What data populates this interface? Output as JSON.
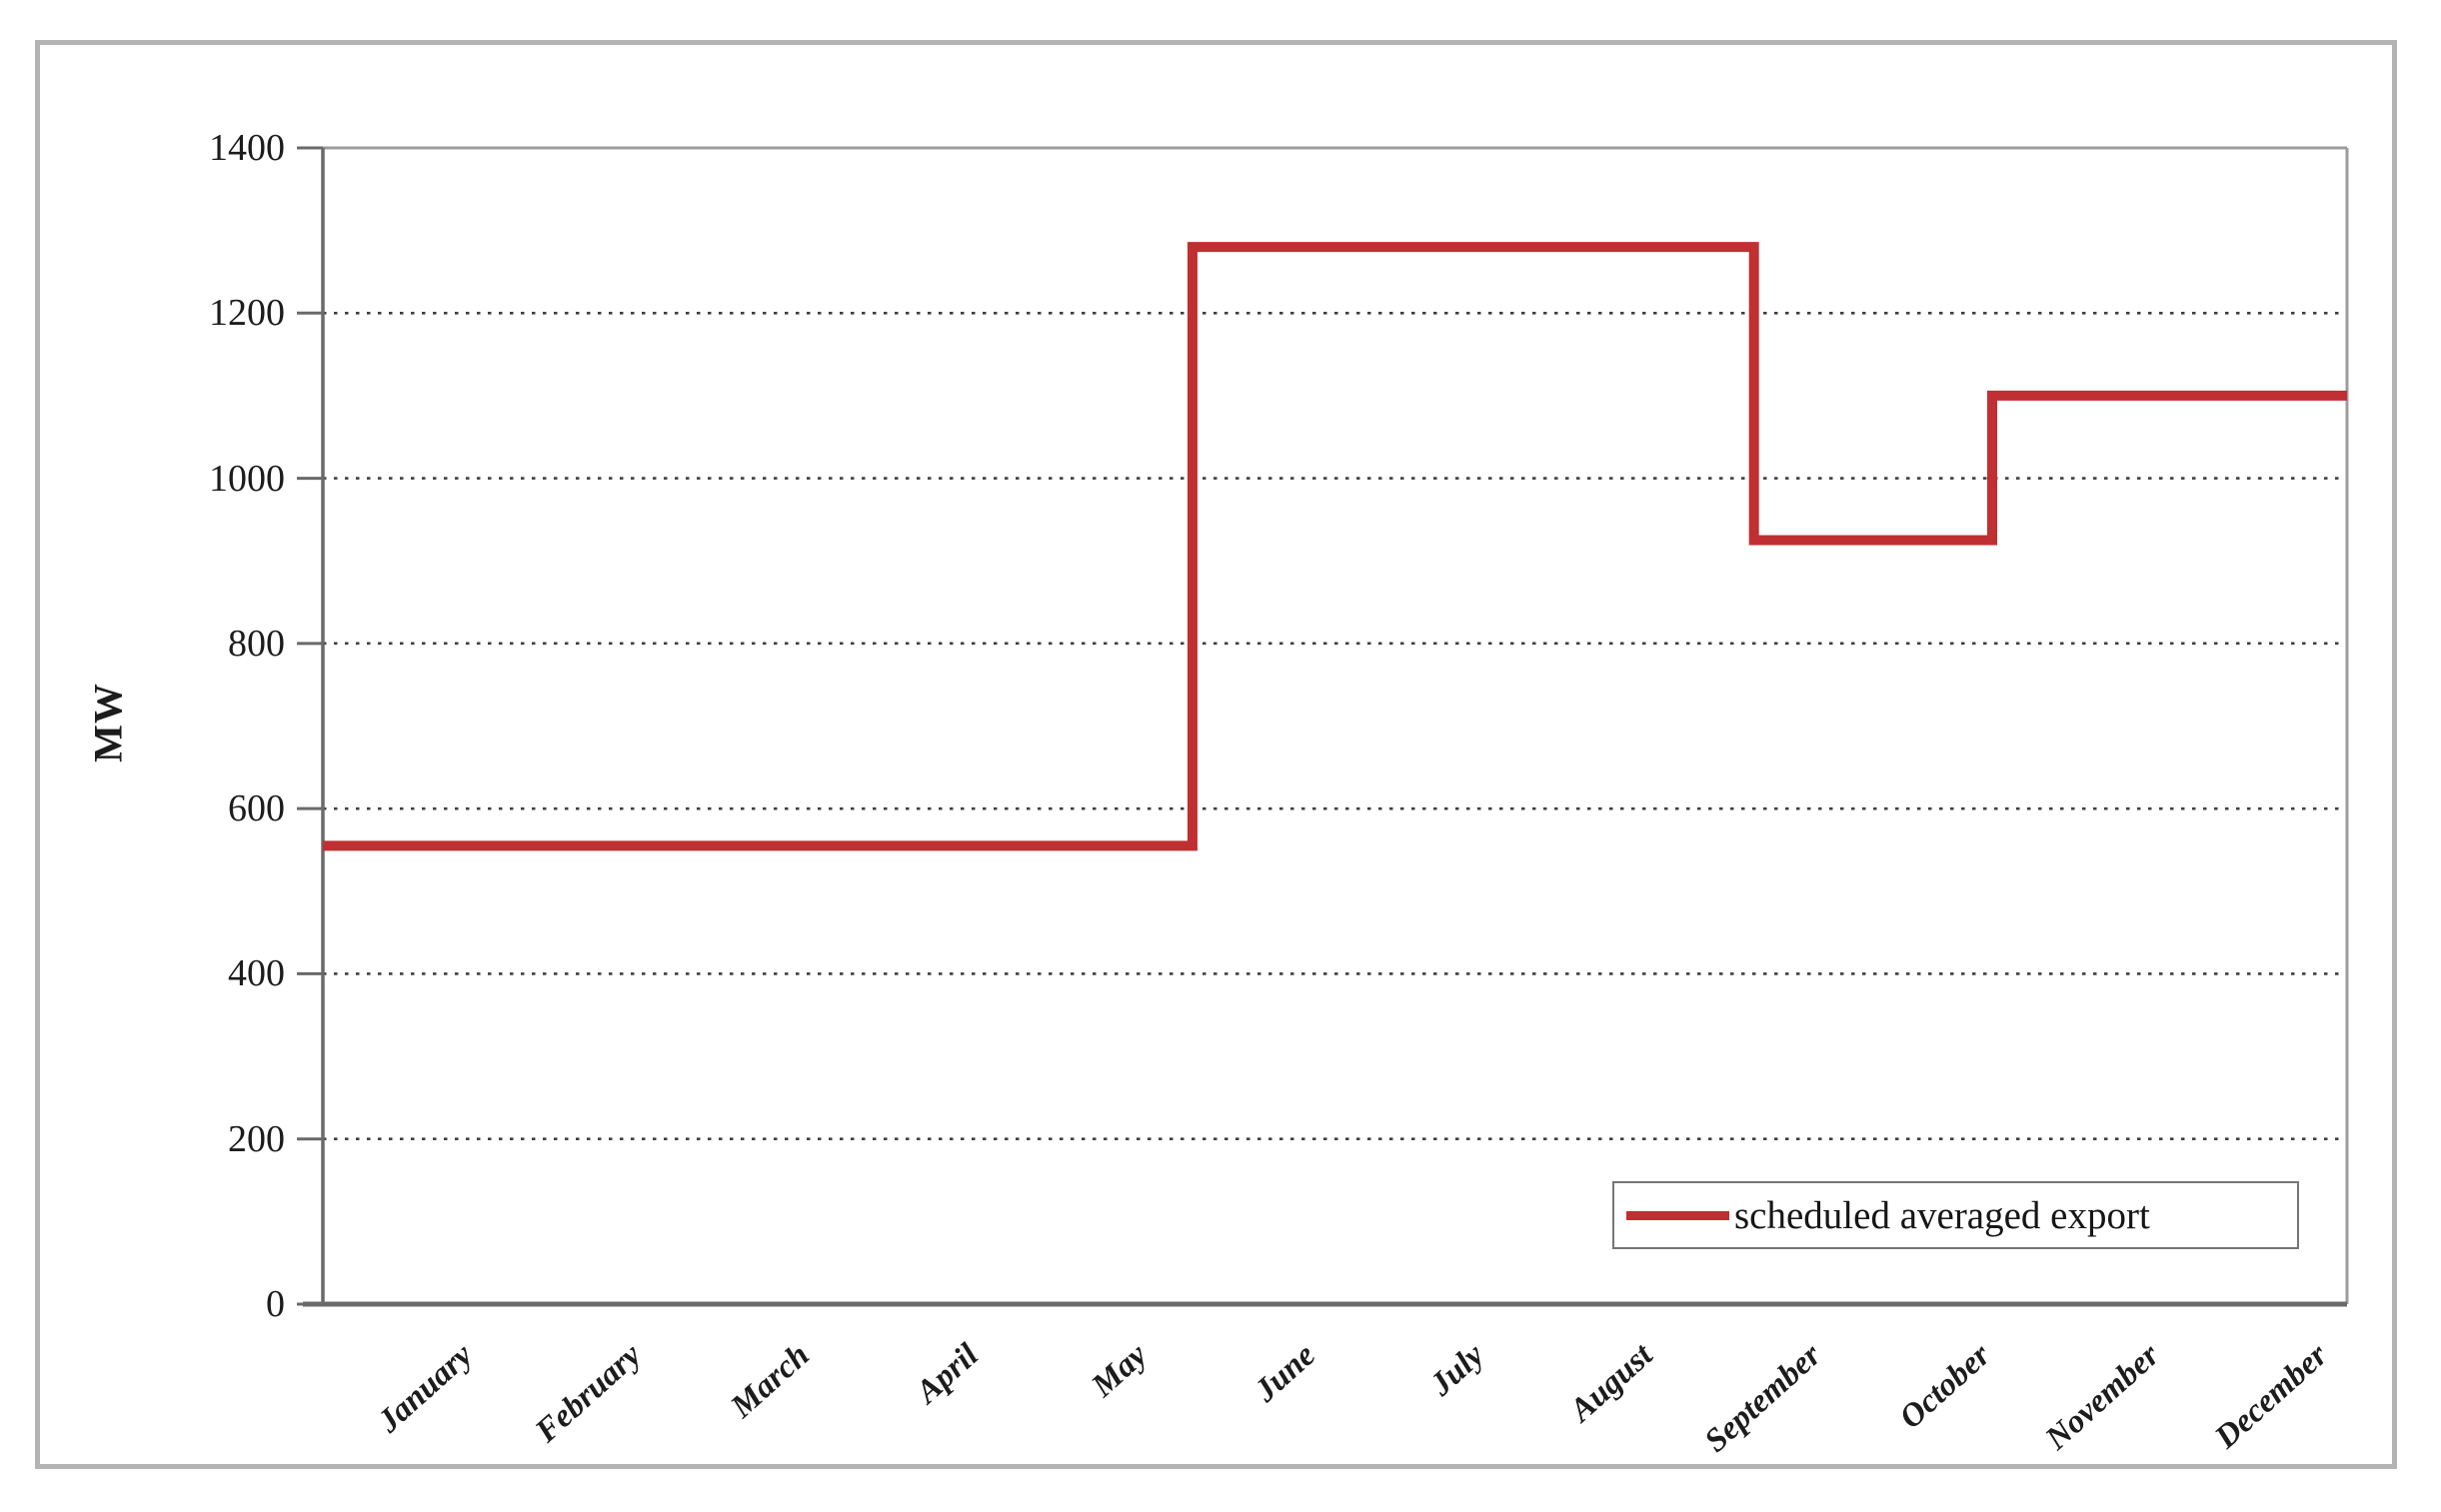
{
  "figure": {
    "y_axis_title": "MW",
    "legend_label": "scheduled averaged export"
  },
  "chart_data": {
    "type": "line",
    "step_style": true,
    "title": "",
    "xlabel": "",
    "ylabel": "MW",
    "ylim": [
      0,
      1400
    ],
    "ytick_interval": 200,
    "ytick_labels": [
      "0",
      "200",
      "400",
      "600",
      "800",
      "1000",
      "1200",
      "1400"
    ],
    "categories": [
      "January",
      "February",
      "March",
      "April",
      "May",
      "June",
      "July",
      "August",
      "September",
      "October",
      "November",
      "December"
    ],
    "series": [
      {
        "name": "scheduled averaged export",
        "color": "#c02f32",
        "values_mw_by_month": [
          555,
          555,
          555,
          555,
          555,
          1280,
          1280,
          1280,
          925,
          925,
          1100,
          1100
        ]
      }
    ],
    "step_profile": [
      {
        "x_frac": 0.0,
        "mw": 555
      },
      {
        "x_frac": 0.4296,
        "mw": 555
      },
      {
        "x_frac": 0.4296,
        "mw": 1280
      },
      {
        "x_frac": 0.707,
        "mw": 1280
      },
      {
        "x_frac": 0.707,
        "mw": 925
      },
      {
        "x_frac": 0.8247,
        "mw": 925
      },
      {
        "x_frac": 0.8247,
        "mw": 1100
      },
      {
        "x_frac": 1.0,
        "mw": 1100
      }
    ],
    "grid": "dotted horizontal gridlines at each 200 MW",
    "legend_position": "inside bottom-right"
  },
  "colors": {
    "series_red": "#c02f32",
    "axis_gray": "#6a6a6a",
    "plot_border_gray": "#9c9c9c",
    "figure_border_gray": "#b4b4b4",
    "grid_dot_gray": "#3f3f3f",
    "text_color": "#1c1c1c",
    "background": "#ffffff"
  }
}
